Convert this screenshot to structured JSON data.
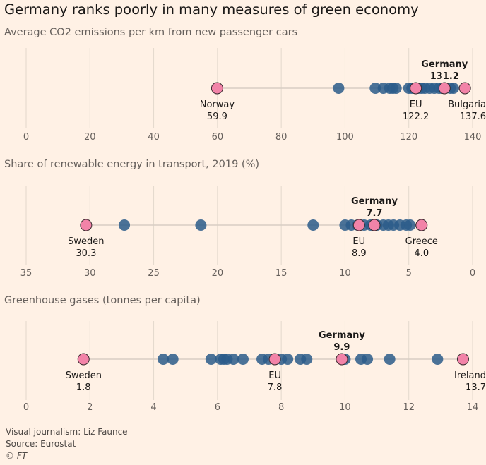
{
  "title": "Germany ranks poorly in many measures of green economy",
  "colors": {
    "background": "#fff1e5",
    "eu_dot": "#2b5c8a",
    "highlight_dot": "#f283a8",
    "grid": "#e3d8cc",
    "range_line": "#d8cec4"
  },
  "chart_data": [
    {
      "type": "scatter",
      "title": "Average CO2 emissions per km from new passenger cars",
      "xlim": [
        0,
        140
      ],
      "reversed": false,
      "ticks": [
        0,
        20,
        40,
        60,
        80,
        100,
        120,
        140
      ],
      "values": [
        98,
        109.5,
        112,
        114,
        115,
        116,
        120,
        121,
        123,
        124,
        125,
        126.5,
        128,
        129.5,
        130.5,
        131.5,
        133,
        134
      ],
      "highlights": [
        {
          "name": "Norway",
          "value": 59.9,
          "label": "59.9",
          "pos": "below"
        },
        {
          "name": "EU",
          "value": 122.2,
          "label": "122.2",
          "pos": "below"
        },
        {
          "name": "Germany",
          "value": 131.2,
          "label": "131.2",
          "pos": "above"
        },
        {
          "name": "Bulgaria",
          "value": 137.6,
          "label": "137.6",
          "pos": "below"
        }
      ]
    },
    {
      "type": "scatter",
      "title": "Share of renewable energy in transport, 2019 (%)",
      "xlim": [
        35,
        0
      ],
      "reversed": true,
      "ticks": [
        35,
        30,
        25,
        20,
        15,
        10,
        5,
        0
      ],
      "values": [
        27.3,
        21.3,
        12.5,
        10.0,
        9.5,
        9.0,
        8.5,
        8.0,
        7.5,
        7.0,
        6.6,
        6.2,
        5.7,
        5.2,
        4.9
      ],
      "highlights": [
        {
          "name": "Sweden",
          "value": 30.3,
          "label": "30.3",
          "pos": "below"
        },
        {
          "name": "EU",
          "value": 8.9,
          "label": "8.9",
          "pos": "below"
        },
        {
          "name": "Germany",
          "value": 7.7,
          "label": "7.7",
          "pos": "above"
        },
        {
          "name": "Greece",
          "value": 4.0,
          "label": "4.0",
          "pos": "below"
        }
      ]
    },
    {
      "type": "scatter",
      "title": "Greenhouse gases (tonnes per capita)",
      "xlim": [
        0,
        14
      ],
      "reversed": false,
      "ticks": [
        0,
        2,
        4,
        6,
        8,
        10,
        12,
        14
      ],
      "values": [
        4.3,
        4.6,
        5.8,
        6.1,
        6.2,
        6.3,
        6.5,
        6.8,
        7.4,
        7.6,
        8.0,
        8.2,
        8.6,
        8.8,
        10.0,
        10.5,
        10.7,
        11.4,
        12.9
      ],
      "highlights": [
        {
          "name": "Sweden",
          "value": 1.8,
          "label": "1.8",
          "pos": "below"
        },
        {
          "name": "EU",
          "value": 7.8,
          "label": "7.8",
          "pos": "below"
        },
        {
          "name": "Germany",
          "value": 9.9,
          "label": "9.9",
          "pos": "above"
        },
        {
          "name": "Ireland",
          "value": 13.7,
          "label": "13.7",
          "pos": "below"
        }
      ]
    }
  ],
  "footer": {
    "credit": "Visual journalism: Liz Faunce",
    "source": "Source: Eurostat",
    "copyright": "© FT"
  }
}
